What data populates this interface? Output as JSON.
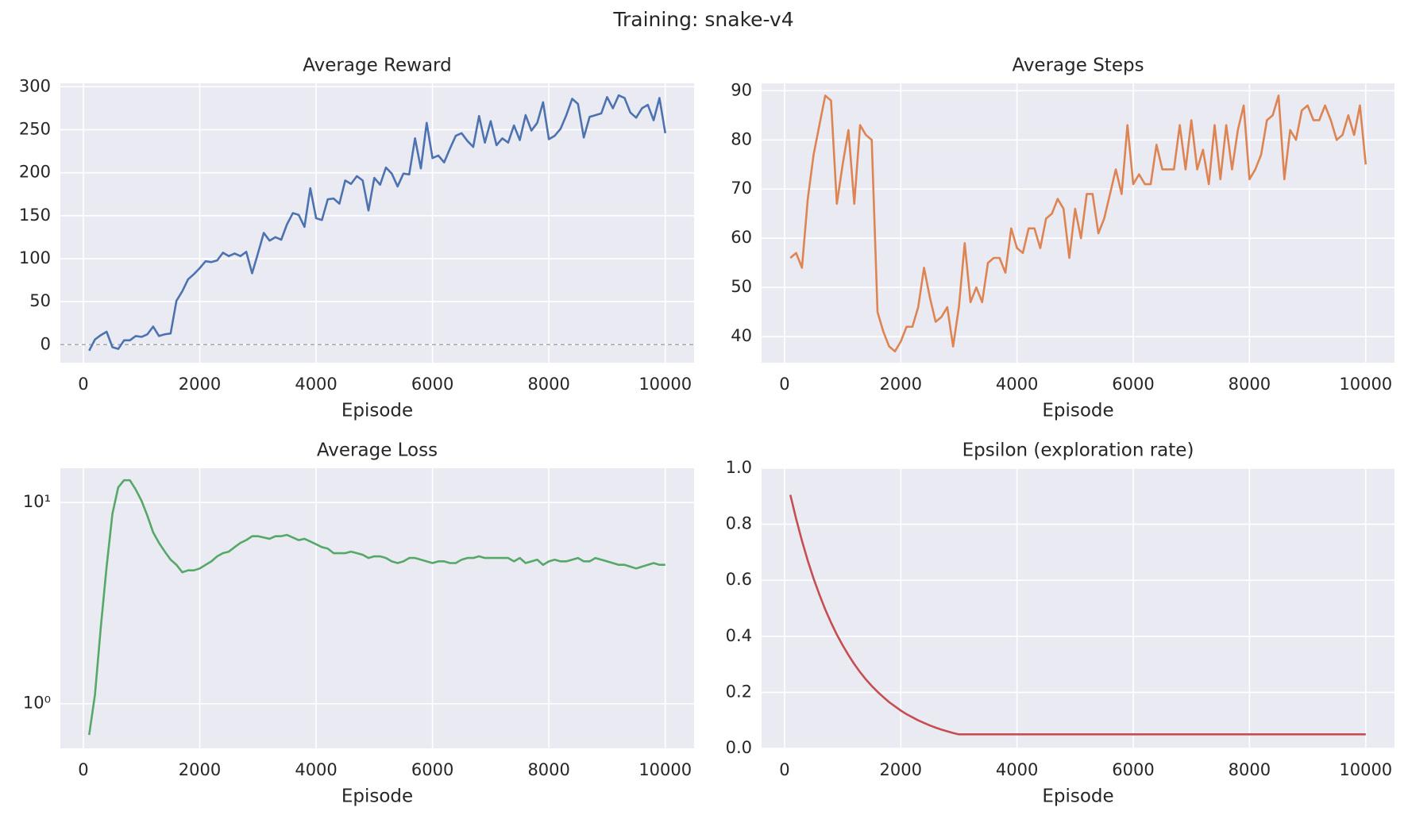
{
  "title": "Training: snake-v4",
  "chart_data": [
    {
      "type": "line",
      "title": "Average Reward",
      "x_label": "Episode",
      "x": [
        100,
        200,
        300,
        400,
        500,
        600,
        700,
        800,
        900,
        1000,
        1100,
        1200,
        1300,
        1400,
        1500,
        1600,
        1700,
        1800,
        1900,
        2000,
        2100,
        2200,
        2300,
        2400,
        2500,
        2600,
        2700,
        2800,
        2900,
        3000,
        3100,
        3200,
        3300,
        3400,
        3500,
        3600,
        3700,
        3800,
        3900,
        4000,
        4100,
        4200,
        4300,
        4400,
        4500,
        4600,
        4700,
        4800,
        4900,
        5000,
        5100,
        5200,
        5300,
        5400,
        5500,
        5600,
        5700,
        5800,
        5900,
        6000,
        6100,
        6200,
        6300,
        6400,
        6500,
        6600,
        6700,
        6800,
        6900,
        7000,
        7100,
        7200,
        7300,
        7400,
        7500,
        7600,
        7700,
        7800,
        7900,
        8000,
        8100,
        8200,
        8300,
        8400,
        8500,
        8600,
        8700,
        8800,
        8900,
        9000,
        9100,
        9200,
        9300,
        9400,
        9500,
        9600,
        9700,
        9800,
        9900,
        10000
      ],
      "series": [
        {
          "color": "#4c72b0",
          "values": [
            -7,
            6,
            11,
            15,
            -3,
            -5,
            5,
            5,
            10,
            9,
            12,
            21,
            10,
            12,
            13,
            51,
            62,
            76,
            82,
            89,
            97,
            96,
            98,
            107,
            103,
            106,
            103,
            108,
            83,
            106,
            130,
            121,
            125,
            122,
            140,
            153,
            151,
            137,
            182,
            147,
            145,
            169,
            170,
            164,
            191,
            187,
            196,
            191,
            156,
            194,
            186,
            206,
            199,
            184,
            199,
            198,
            240,
            205,
            258,
            217,
            220,
            212,
            228,
            243,
            246,
            237,
            230,
            266,
            235,
            260,
            232,
            240,
            235,
            255,
            238,
            267,
            249,
            258,
            282,
            239,
            243,
            251,
            267,
            286,
            280,
            241,
            265,
            267,
            269,
            288,
            275,
            290,
            287,
            270,
            264,
            275,
            279,
            261,
            287,
            246
          ]
        }
      ],
      "xlim": [
        -395,
        10495
      ],
      "xticks": [
        0,
        2000,
        4000,
        6000,
        8000,
        10000
      ],
      "ylim": [
        -21,
        304
      ],
      "yticks": [
        0,
        50,
        100,
        150,
        200,
        250,
        300
      ],
      "reference_line": 0,
      "grid": true
    },
    {
      "type": "line",
      "title": "Average Steps",
      "x_label": "Episode",
      "x": [
        100,
        200,
        300,
        400,
        500,
        600,
        700,
        800,
        900,
        1000,
        1100,
        1200,
        1300,
        1400,
        1500,
        1600,
        1700,
        1800,
        1900,
        2000,
        2100,
        2200,
        2300,
        2400,
        2500,
        2600,
        2700,
        2800,
        2900,
        3000,
        3100,
        3200,
        3300,
        3400,
        3500,
        3600,
        3700,
        3800,
        3900,
        4000,
        4100,
        4200,
        4300,
        4400,
        4500,
        4600,
        4700,
        4800,
        4900,
        5000,
        5100,
        5200,
        5300,
        5400,
        5500,
        5600,
        5700,
        5800,
        5900,
        6000,
        6100,
        6200,
        6300,
        6400,
        6500,
        6600,
        6700,
        6800,
        6900,
        7000,
        7100,
        7200,
        7300,
        7400,
        7500,
        7600,
        7700,
        7800,
        7900,
        8000,
        8100,
        8200,
        8300,
        8400,
        8500,
        8600,
        8700,
        8800,
        8900,
        9000,
        9100,
        9200,
        9300,
        9400,
        9500,
        9600,
        9700,
        9800,
        9900,
        10000
      ],
      "series": [
        {
          "color": "#dd8452",
          "values": [
            56,
            57,
            54,
            68,
            77,
            83,
            89,
            88,
            67,
            75,
            82,
            67,
            83,
            81,
            80,
            45,
            41,
            38,
            37,
            39,
            42,
            42,
            46,
            54,
            48,
            43,
            44,
            46,
            38,
            46,
            59,
            47,
            50,
            47,
            55,
            56,
            56,
            53,
            62,
            58,
            57,
            62,
            62,
            58,
            64,
            65,
            68,
            66,
            56,
            66,
            60,
            69,
            69,
            61,
            64,
            69,
            74,
            69,
            83,
            71,
            73,
            71,
            71,
            79,
            74,
            74,
            74,
            83,
            74,
            84,
            74,
            78,
            71,
            83,
            72,
            83,
            74,
            82,
            87,
            72,
            74,
            77,
            84,
            85,
            89,
            72,
            82,
            80,
            86,
            87,
            84,
            84,
            87,
            84,
            80,
            81,
            85,
            81,
            87,
            75
          ]
        }
      ],
      "xlim": [
        -395,
        10495
      ],
      "xticks": [
        0,
        2000,
        4000,
        6000,
        8000,
        10000
      ],
      "ylim": [
        34.7,
        91.5
      ],
      "yticks": [
        40,
        50,
        60,
        70,
        80,
        90
      ],
      "grid": true
    },
    {
      "type": "line",
      "title": "Average Loss",
      "x_label": "Episode",
      "log_y": true,
      "x": [
        100,
        200,
        300,
        400,
        500,
        600,
        700,
        800,
        900,
        1000,
        1100,
        1200,
        1300,
        1400,
        1500,
        1600,
        1700,
        1800,
        1900,
        2000,
        2100,
        2200,
        2300,
        2400,
        2500,
        2600,
        2700,
        2800,
        2900,
        3000,
        3100,
        3200,
        3300,
        3400,
        3500,
        3600,
        3700,
        3800,
        3900,
        4000,
        4100,
        4200,
        4300,
        4400,
        4500,
        4600,
        4700,
        4800,
        4900,
        5000,
        5100,
        5200,
        5300,
        5400,
        5500,
        5600,
        5700,
        5800,
        5900,
        6000,
        6100,
        6200,
        6300,
        6400,
        6500,
        6600,
        6700,
        6800,
        6900,
        7000,
        7100,
        7200,
        7300,
        7400,
        7500,
        7600,
        7700,
        7800,
        7900,
        8000,
        8100,
        8200,
        8300,
        8400,
        8500,
        8600,
        8700,
        8800,
        8900,
        9000,
        9100,
        9200,
        9300,
        9400,
        9500,
        9600,
        9700,
        9800,
        9900,
        10000
      ],
      "series": [
        {
          "color": "#55a868",
          "values": [
            0.7,
            1.11,
            2.4,
            4.8,
            8.8,
            11.9,
            12.9,
            12.9,
            11.6,
            10.2,
            8.6,
            7.1,
            6.3,
            5.7,
            5.2,
            4.9,
            4.5,
            4.6,
            4.6,
            4.7,
            4.9,
            5.1,
            5.4,
            5.6,
            5.7,
            6.0,
            6.3,
            6.5,
            6.8,
            6.8,
            6.7,
            6.6,
            6.8,
            6.8,
            6.9,
            6.7,
            6.5,
            6.6,
            6.4,
            6.2,
            6.0,
            5.9,
            5.6,
            5.6,
            5.6,
            5.7,
            5.6,
            5.5,
            5.3,
            5.4,
            5.4,
            5.3,
            5.1,
            5.0,
            5.1,
            5.3,
            5.3,
            5.2,
            5.1,
            5.0,
            5.1,
            5.1,
            5.0,
            5.0,
            5.2,
            5.3,
            5.3,
            5.4,
            5.3,
            5.3,
            5.3,
            5.3,
            5.3,
            5.1,
            5.3,
            5.0,
            5.1,
            5.2,
            4.9,
            5.1,
            5.2,
            5.1,
            5.1,
            5.2,
            5.3,
            5.1,
            5.1,
            5.3,
            5.2,
            5.1,
            5.0,
            4.9,
            4.9,
            4.8,
            4.7,
            4.8,
            4.9,
            5.0,
            4.9,
            4.9
          ]
        }
      ],
      "xlim": [
        -395,
        10495
      ],
      "xticks": [
        0,
        2000,
        4000,
        6000,
        8000,
        10000
      ],
      "ylim": [
        0.6,
        14.8
      ],
      "yticks": [
        {
          "value": 1,
          "label": "10⁰"
        },
        {
          "value": 10,
          "label": "10¹"
        }
      ],
      "grid": true
    },
    {
      "type": "line",
      "title": "Epsilon (exploration rate)",
      "x_label": "Episode",
      "x": [
        100,
        200,
        300,
        400,
        500,
        600,
        700,
        800,
        900,
        1000,
        1100,
        1200,
        1300,
        1400,
        1500,
        1600,
        1700,
        1800,
        1900,
        2000,
        2100,
        2200,
        2300,
        2400,
        2500,
        2600,
        2700,
        2800,
        2900,
        3000,
        3100,
        3200,
        3300,
        3400,
        3500,
        3600,
        3700,
        3800,
        3900,
        4000,
        4100,
        4200,
        4300,
        4400,
        4500,
        4600,
        4700,
        4800,
        4900,
        5000,
        5100,
        5200,
        5300,
        5400,
        5500,
        5600,
        5700,
        5800,
        5900,
        6000,
        6100,
        6200,
        6300,
        6400,
        6500,
        6600,
        6700,
        6800,
        6900,
        7000,
        7100,
        7200,
        7300,
        7400,
        7500,
        7600,
        7700,
        7800,
        7900,
        8000,
        8100,
        8200,
        8300,
        8400,
        8500,
        8600,
        8700,
        8800,
        8900,
        9000,
        9100,
        9200,
        9300,
        9400,
        9500,
        9600,
        9700,
        9800,
        9900,
        10000
      ],
      "series": [
        {
          "color": "#c44e52",
          "values": [
            0.905,
            0.819,
            0.741,
            0.67,
            0.606,
            0.549,
            0.496,
            0.449,
            0.406,
            0.368,
            0.333,
            0.301,
            0.272,
            0.246,
            0.223,
            0.202,
            0.183,
            0.165,
            0.15,
            0.135,
            0.122,
            0.111,
            0.1,
            0.091,
            0.082,
            0.074,
            0.067,
            0.061,
            0.055,
            0.05,
            0.05,
            0.05,
            0.05,
            0.05,
            0.05,
            0.05,
            0.05,
            0.05,
            0.05,
            0.05,
            0.05,
            0.05,
            0.05,
            0.05,
            0.05,
            0.05,
            0.05,
            0.05,
            0.05,
            0.05,
            0.05,
            0.05,
            0.05,
            0.05,
            0.05,
            0.05,
            0.05,
            0.05,
            0.05,
            0.05,
            0.05,
            0.05,
            0.05,
            0.05,
            0.05,
            0.05,
            0.05,
            0.05,
            0.05,
            0.05,
            0.05,
            0.05,
            0.05,
            0.05,
            0.05,
            0.05,
            0.05,
            0.05,
            0.05,
            0.05,
            0.05,
            0.05,
            0.05,
            0.05,
            0.05,
            0.05,
            0.05,
            0.05,
            0.05,
            0.05,
            0.05,
            0.05,
            0.05,
            0.05,
            0.05,
            0.05,
            0.05,
            0.05,
            0.05,
            0.05
          ]
        }
      ],
      "xlim": [
        -395,
        10495
      ],
      "xticks": [
        0,
        2000,
        4000,
        6000,
        8000,
        10000
      ],
      "ylim": [
        0,
        1
      ],
      "yticks": [
        {
          "value": 0,
          "label": "0.0"
        },
        0.2,
        0.4,
        0.6,
        0.8,
        {
          "value": 1,
          "label": "1.0"
        }
      ],
      "grid": true
    }
  ]
}
